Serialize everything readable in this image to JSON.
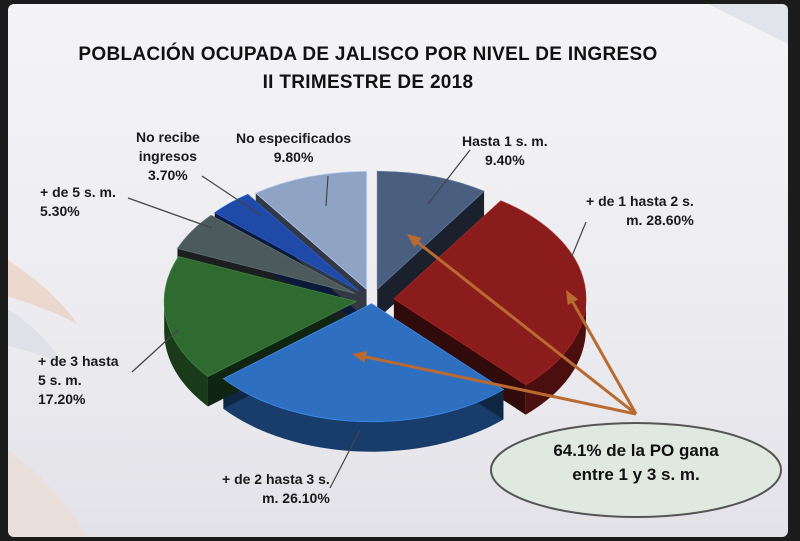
{
  "chart_data": {
    "type": "pie",
    "title": "POBLACIÓN OCUPADA DE JALISCO POR NIVEL DE INGRESO",
    "subtitle": "II TRIMESTRE DE 2018",
    "slices": [
      {
        "label_lines": [
          "Hasta 1 s. m.",
          "9.40%"
        ],
        "value": 9.4,
        "color": "#4a5f80"
      },
      {
        "label_lines": [
          "+ de 1 hasta 2 s.",
          "m. 28.60%"
        ],
        "value": 28.6,
        "color": "#8b1c1c"
      },
      {
        "label_lines": [
          "+ de 2 hasta 3 s.",
          "m. 26.10%"
        ],
        "value": 26.1,
        "color": "#2e6fc0"
      },
      {
        "label_lines": [
          "+ de 3 hasta",
          "5 s. m.",
          "17.20%"
        ],
        "value": 17.2,
        "color": "#2f6b30"
      },
      {
        "label_lines": [
          "+ de 5 s. m.",
          "5.30%"
        ],
        "value": 5.3,
        "color": "#4d5a5c"
      },
      {
        "label_lines": [
          "No recibe",
          "ingresos",
          "3.70%"
        ],
        "value": 3.7,
        "color": "#1f4aa8"
      },
      {
        "label_lines": [
          "No especificados",
          "9.80%"
        ],
        "value": 9.8,
        "color": "#8fa3c4"
      }
    ],
    "annotation": [
      "64.1% de la PO gana",
      "entre 1 y 3 s. m."
    ],
    "accent": "#b86a30",
    "callout_fill": "#dfe9df"
  }
}
